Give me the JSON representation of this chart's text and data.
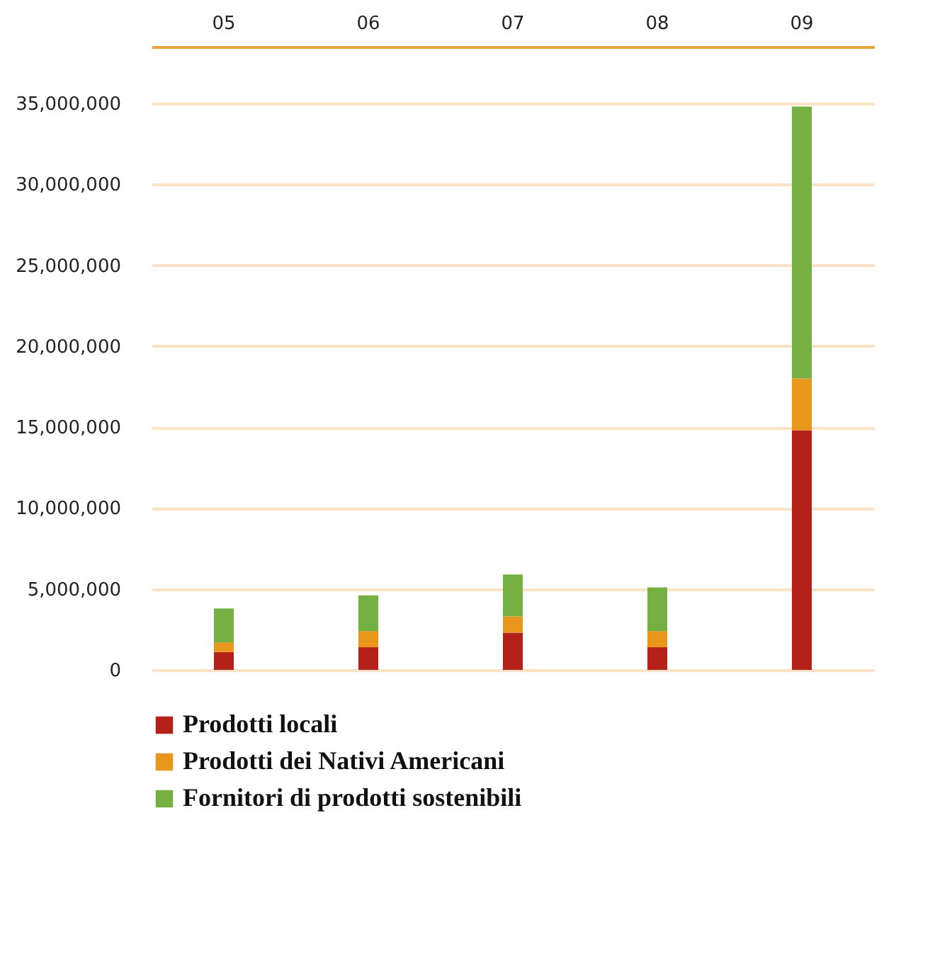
{
  "chart_data": {
    "type": "bar",
    "stacked": true,
    "categories": [
      "05",
      "06",
      "07",
      "08",
      "09"
    ],
    "series": [
      {
        "name": "Prodotti locali",
        "color": "#b3211a",
        "values": [
          1100000,
          1400000,
          2300000,
          1400000,
          14800000
        ]
      },
      {
        "name": "Prodotti dei Nativi Americani",
        "color": "#e8961c",
        "values": [
          600000,
          1000000,
          1000000,
          1000000,
          3200000
        ]
      },
      {
        "name": "Fornitori di prodotti sostenibili",
        "color": "#76b043",
        "values": [
          2100000,
          2200000,
          2600000,
          2700000,
          16800000
        ]
      }
    ],
    "ylim": [
      0,
      38500000
    ],
    "yticks": [
      {
        "value": 0,
        "label": "0"
      },
      {
        "value": 5000000,
        "label": "5,000,000"
      },
      {
        "value": 10000000,
        "label": "10,000,000"
      },
      {
        "value": 15000000,
        "label": "15,000,000"
      },
      {
        "value": 20000000,
        "label": "20,000,000"
      },
      {
        "value": 25000000,
        "label": "25,000,000"
      },
      {
        "value": 30000000,
        "label": "30,000,000"
      },
      {
        "value": 35000000,
        "label": "35,000,000"
      }
    ],
    "grid": "y",
    "legend": "bottom left"
  }
}
